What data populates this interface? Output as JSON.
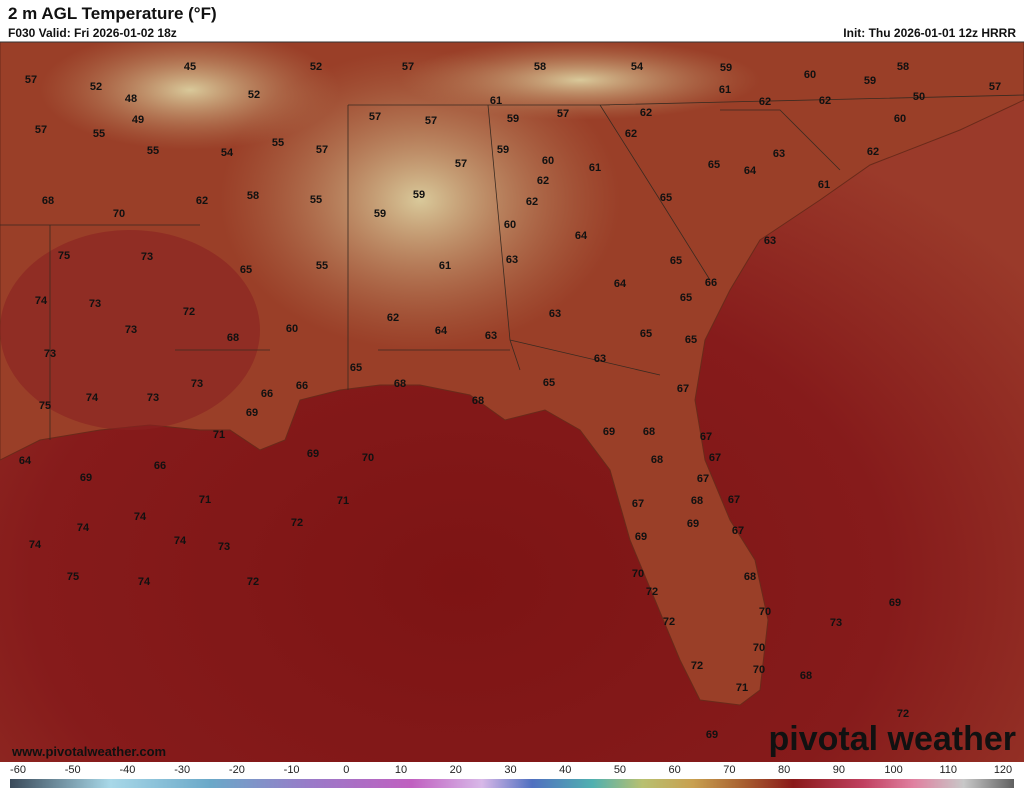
{
  "header": {
    "title": "2 m AGL Temperature (°F)",
    "valid": "F030 Valid: Fri 2026-01-02 18z",
    "init": "Init: Thu 2026-01-01 12z HRRR"
  },
  "points": [
    57,
    52,
    48,
    45,
    49,
    52,
    52,
    57,
    58,
    54,
    59,
    60,
    59,
    58,
    57,
    50,
    61,
    61,
    62,
    62,
    60,
    57,
    55,
    57,
    57,
    59,
    57,
    62,
    62,
    55,
    54,
    55,
    57,
    59,
    60,
    61,
    65,
    64,
    63,
    62,
    57,
    62,
    61,
    68,
    70,
    62,
    58,
    55,
    59,
    62,
    65,
    59,
    60,
    64,
    63,
    75,
    73,
    65,
    55,
    61,
    63,
    65,
    66,
    74,
    73,
    72,
    64,
    65,
    62,
    64,
    63,
    63,
    65,
    65,
    73,
    68,
    60,
    73,
    63,
    65,
    68,
    65,
    67,
    73,
    66,
    66,
    75,
    74,
    73,
    69,
    68,
    71,
    69,
    68,
    67,
    64,
    66,
    69,
    70,
    68,
    67,
    67,
    69,
    71,
    71,
    68,
    67,
    67,
    74,
    74,
    72,
    69,
    67,
    74,
    74,
    73,
    69,
    75,
    74,
    72,
    70,
    72,
    68,
    69,
    70,
    72,
    73,
    70,
    72,
    70,
    68,
    71,
    72,
    69
  ],
  "colorbar": {
    "ticks": [
      -60,
      -50,
      -40,
      -30,
      -20,
      -10,
      0,
      10,
      20,
      30,
      40,
      50,
      60,
      70,
      80,
      90,
      100,
      110,
      120
    ]
  },
  "watermark": "www.pivotalweather.com",
  "logo": "pivotal weather"
}
